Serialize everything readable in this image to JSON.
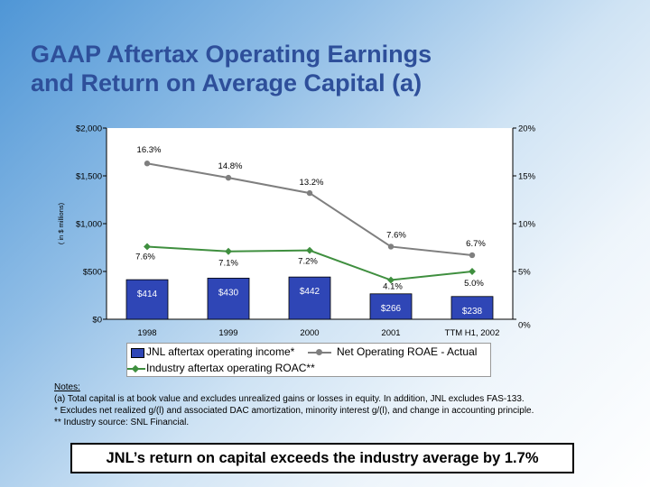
{
  "slide": {
    "title_line1": "GAAP Aftertax Operating Earnings",
    "title_line2": "and Return on Average Capital (a)",
    "notes_heading": "Notes:",
    "note_a": "(a) Total capital is at  book value and excludes unrealized gains or losses in equity.  In addition, JNL excludes FAS-133.",
    "note_star": "*    Excludes net realized g/(l) and associated DAC amortization, minority interest g/(l), and change in accounting principle.",
    "note_dstar": "**  Industry source:  SNL Financial.",
    "banner": "JNL’s return on capital exceeds the industry average by 1.7%"
  },
  "chart_data": {
    "type": "bar+line",
    "categories": [
      "1998",
      "1999",
      "2000",
      "2001",
      "TTM H1, 2002"
    ],
    "left_axis": {
      "label": "( in $ millions)",
      "ticks": [
        "$0",
        "$500",
        "$1,000",
        "$1,500",
        "$2,000"
      ],
      "ylim": [
        0,
        2000
      ]
    },
    "right_axis": {
      "ticks": [
        "0%",
        "5%",
        "10%",
        "15%",
        "20%"
      ],
      "ylim": [
        0,
        20
      ]
    },
    "bars": {
      "name": "JNL aftertax operating income*",
      "values": [
        414,
        430,
        442,
        266,
        238
      ],
      "labels": [
        "$414",
        "$430",
        "$442",
        "$266",
        "$238"
      ],
      "color": "#2f46b6"
    },
    "series": [
      {
        "name": "Net Operating ROAE - Actual",
        "values": [
          16.3,
          14.8,
          13.2,
          7.6,
          6.7
        ],
        "labels": [
          "16.3%",
          "14.8%",
          "13.2%",
          "7.6%",
          "6.7%"
        ],
        "color": "#7f7f7f"
      },
      {
        "name": "Industry aftertax operating ROAC**",
        "values": [
          7.6,
          7.1,
          7.2,
          4.1,
          5.0
        ],
        "labels": [
          "7.6%",
          "7.1%",
          "7.2%",
          "4.1%",
          "5.0%"
        ],
        "color": "#3f8f3f"
      }
    ]
  }
}
